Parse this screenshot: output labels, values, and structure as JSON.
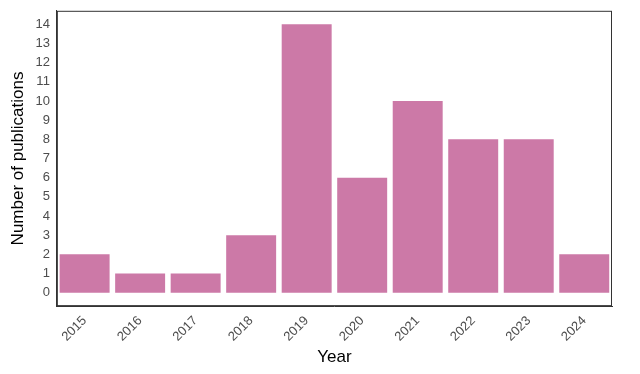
{
  "chart_data": {
    "type": "bar",
    "x_label": "Year",
    "y_label": "Number of publications",
    "categories": [
      "2015",
      "2016",
      "2017",
      "2018",
      "2019",
      "2020",
      "2021",
      "2022",
      "2023",
      "2024"
    ],
    "values": [
      2,
      1,
      1,
      3,
      14,
      6,
      10,
      8,
      8,
      2
    ],
    "color": "#cc79a7",
    "ylim": [
      -0.7,
      14.7
    ],
    "yticks": [
      0,
      1,
      2,
      3,
      4,
      5,
      6,
      7,
      8,
      9,
      10,
      11,
      12,
      13,
      14
    ],
    "grid": false
  }
}
